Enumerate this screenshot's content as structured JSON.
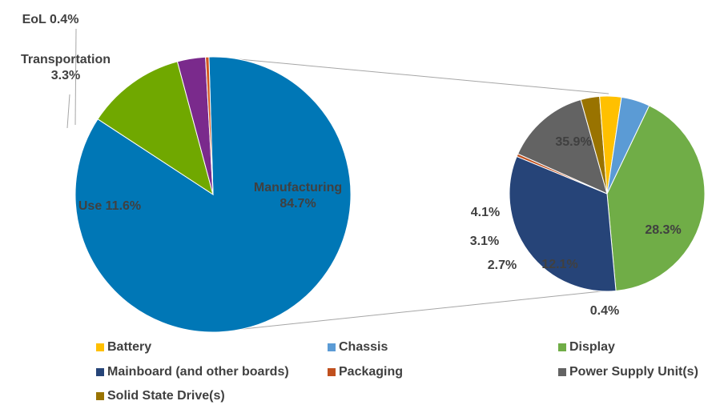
{
  "chart_data": [
    {
      "type": "pie",
      "slices": [
        {
          "name": "Manufacturing",
          "value": 84.7,
          "label": "Manufacturing\n84.7%",
          "color": "#0077B6"
        },
        {
          "name": "Use",
          "value": 11.6,
          "label": "Use 11.6%",
          "color": "#70A800"
        },
        {
          "name": "Transportation",
          "value": 3.3,
          "label": "Transportation\n3.3%",
          "color": "#7A2A8C"
        },
        {
          "name": "EoL",
          "value": 0.4,
          "label": "EoL 0.4%",
          "color": "#D2571E"
        }
      ]
    },
    {
      "type": "pie",
      "slices": [
        {
          "name": "Display",
          "value": 35.9,
          "label": "35.9%",
          "color": "#70AD47"
        },
        {
          "name": "Mainboard (and other boards)",
          "value": 28.3,
          "label": "28.3%",
          "color": "#264478"
        },
        {
          "name": "Packaging",
          "value": 0.4,
          "label": "0.4%",
          "color": "#C0501E"
        },
        {
          "name": "Power Supply Unit(s)",
          "value": 12.1,
          "label": "12.1%",
          "color": "#636363"
        },
        {
          "name": "Solid State Drive(s)",
          "value": 2.7,
          "label": "2.7%",
          "color": "#997300"
        },
        {
          "name": "Battery",
          "value": 3.1,
          "label": "3.1%",
          "color": "#FFC000"
        },
        {
          "name": "Chassis",
          "value": 4.1,
          "label": "4.1%",
          "color": "#5B9BD5"
        }
      ]
    }
  ],
  "legend": [
    {
      "name": "Battery",
      "color": "#FFC000"
    },
    {
      "name": "Chassis",
      "color": "#5B9BD5"
    },
    {
      "name": "Display",
      "color": "#70AD47"
    },
    {
      "name": "Mainboard (and other boards)",
      "color": "#264478"
    },
    {
      "name": "Packaging",
      "color": "#C0501E"
    },
    {
      "name": "Power Supply Unit(s)",
      "color": "#636363"
    },
    {
      "name": "Solid State Drive(s)",
      "color": "#997300"
    }
  ]
}
